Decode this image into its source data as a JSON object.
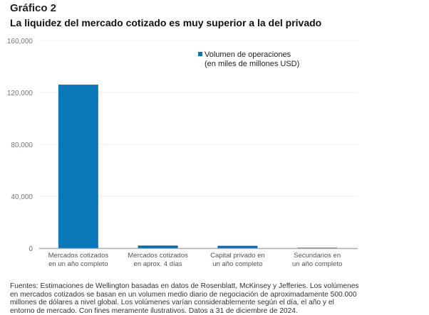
{
  "kicker": "Gráfico 2",
  "title": "La liquidez del mercado cotizado es muy superior a la del privado",
  "legend": {
    "label_line1": "Volumen de operaciones",
    "label_line2": "(en miles de millones USD)"
  },
  "footer": "Fuentes: Estimaciones de Wellington basadas en datos de Rosenblatt, McKinsey y Jefferies. Los volúmenes en mercados cotizados se basan en un volumen medio diario de negociación de aproximadamente 500.000 millones de dólares a nivel global. Los volúmenes varían considerablemente según el día, el año y el entorno de mercado. Con fines meramente ilustrativos. Datos a 31 de diciembre de 2024.",
  "chart_data": {
    "type": "bar",
    "categories": [
      [
        "Mercados cotizados",
        "en un año completo"
      ],
      [
        "Mercados cotizados",
        "en aprox. 4 días"
      ],
      [
        "Capital privado en",
        "un año completo"
      ],
      [
        "Secundarios en",
        "un año completo"
      ]
    ],
    "series": [
      {
        "name": "Volumen de operaciones (en miles de millones USD)",
        "values": [
          126000,
          2000,
          1800,
          200
        ]
      }
    ],
    "bar_colors": [
      "#0a77b8",
      "#0a66a6",
      "#0a66a6",
      "#8a9aa5"
    ],
    "ylim": [
      0,
      160000
    ],
    "yticks": [
      0,
      40000,
      80000,
      120000,
      160000
    ],
    "ytick_labels": [
      "0",
      "40,000",
      "80,000",
      "120,000",
      "160,000"
    ],
    "grid": true,
    "legend_position": "top-right"
  }
}
